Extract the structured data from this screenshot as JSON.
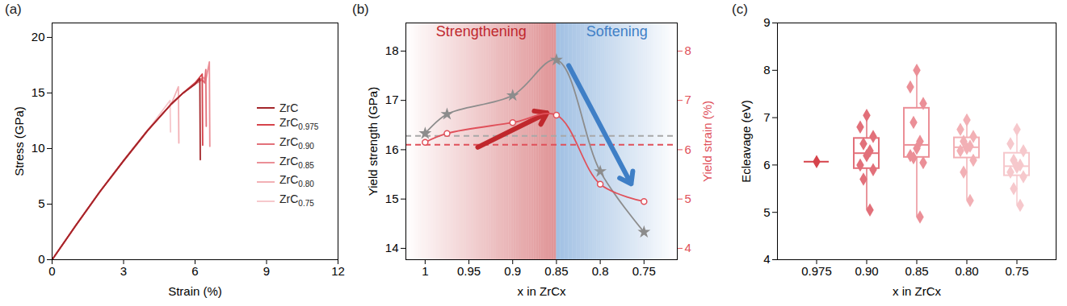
{
  "chart_data": [
    {
      "panel_label": "(a)",
      "type": "line",
      "x_label": "Strain (%)",
      "y_label": "Stress (GPa)",
      "xlim": [
        0,
        12
      ],
      "xticks": [
        0,
        3,
        6,
        9,
        12
      ],
      "ylim": [
        0,
        21.3
      ],
      "yticks": [
        0,
        5,
        10,
        15,
        20
      ],
      "legend": "right",
      "series": [
        {
          "name": "ZrC",
          "color": "#a3262a",
          "x": [
            0,
            1,
            2,
            3,
            4,
            5,
            5.5,
            6.0,
            6.2,
            6.22
          ],
          "values": [
            0,
            3.1,
            6.1,
            8.9,
            11.6,
            14.0,
            15.0,
            15.8,
            16.3,
            9.0
          ]
        },
        {
          "name": "ZrC0.975",
          "color": "#d6434b",
          "x": [
            0,
            1,
            2,
            3,
            4,
            5,
            5.5,
            6.0,
            6.3,
            6.32
          ],
          "values": [
            0,
            3.1,
            6.1,
            8.9,
            11.6,
            14.0,
            15.0,
            15.9,
            16.7,
            10.3
          ]
        },
        {
          "name": "ZrC0.90",
          "color": "#e2707a",
          "x": [
            0,
            1,
            2,
            3,
            4,
            5,
            5.5,
            6.0,
            6.3,
            6.4,
            6.45,
            6.47
          ],
          "values": [
            0,
            3.1,
            6.1,
            8.9,
            11.6,
            14.0,
            15.0,
            15.8,
            16.2,
            15.9,
            17.1,
            12.0
          ]
        },
        {
          "name": "ZrC0.85",
          "color": "#eb8f97",
          "x": [
            0,
            1,
            2,
            3,
            4,
            5,
            5.5,
            6.0,
            6.35,
            6.45,
            6.6,
            6.62
          ],
          "values": [
            0,
            3.1,
            6.1,
            8.9,
            11.6,
            14.0,
            15.0,
            15.9,
            16.4,
            16.1,
            17.8,
            10.2
          ]
        },
        {
          "name": "ZrC0.80",
          "color": "#f2b0b5",
          "x": [
            0,
            1,
            2,
            3,
            4,
            5,
            5.3,
            5.32
          ],
          "values": [
            0,
            3.1,
            6.1,
            8.9,
            11.6,
            14.0,
            15.56,
            10.5
          ]
        },
        {
          "name": "ZrC0.75",
          "color": "#f6c8cc",
          "x": [
            0,
            1,
            2,
            3,
            4,
            4.95,
            4.97
          ],
          "values": [
            0,
            3.1,
            6.1,
            8.9,
            11.6,
            14.33,
            11.5
          ]
        }
      ]
    },
    {
      "panel_label": "(b)",
      "type": "line",
      "x_label": "x in ZrCx",
      "y_label": "Yield strength (GPa)",
      "y2_label": "Yield strain (%)",
      "xlim": [
        1.022,
        0.712
      ],
      "xticks": [
        1,
        0.95,
        0.9,
        0.85,
        0.8,
        0.75
      ],
      "ylim": [
        13.77,
        18.57
      ],
      "yticks": [
        14,
        15,
        16,
        17,
        18
      ],
      "y2lim": [
        3.77,
        8.57
      ],
      "y2ticks": [
        4,
        5,
        6,
        7,
        8
      ],
      "regions": [
        {
          "label": "Strengthening",
          "color": "#c0282d"
        },
        {
          "label": "Softening",
          "color": "#3f7fc6"
        }
      ],
      "series": [
        {
          "color": "#8c8c8c",
          "marker": "star",
          "line_style": "solid",
          "x": [
            1,
            0.975,
            0.9,
            0.85,
            0.8,
            0.75
          ],
          "values": [
            16.33,
            16.72,
            17.1,
            17.82,
            15.56,
            14.33
          ]
        },
        {
          "color": "#e0505a",
          "marker": "circle",
          "line_style": "solid",
          "axis": "y2",
          "x": [
            1,
            0.975,
            0.9,
            0.85,
            0.8,
            0.75
          ],
          "values": [
            6.15,
            6.33,
            6.55,
            6.7,
            5.3,
            4.95
          ]
        }
      ],
      "reference_lines": [
        {
          "value": 16.28,
          "color": "#a8a8a8",
          "line_style": "dashed"
        },
        {
          "value": 6.1,
          "color": "#e0505a",
          "line_style": "dashed",
          "axis": "y2"
        }
      ]
    },
    {
      "panel_label": "(c)",
      "type": "box",
      "x_label": "x in ZrCx",
      "y_label": "Ecleavage (eV)",
      "categories": [
        "0.975",
        "0.90",
        "0.85",
        "0.80",
        "0.75"
      ],
      "colors": [
        "#d6434b",
        "#e2707a",
        "#eb8f97",
        "#f2b0b5",
        "#f6c8cc"
      ],
      "marker": "diamond",
      "values": [
        [
          6.07
        ],
        [
          7.05,
          6.8,
          6.6,
          6.45,
          6.3,
          6.2,
          6.0,
          5.9,
          5.7,
          5.05
        ],
        [
          8.0,
          7.65,
          7.3,
          6.9,
          6.5,
          6.35,
          6.2,
          6.05,
          6.15,
          4.9
        ],
        [
          6.95,
          6.75,
          6.6,
          6.5,
          6.4,
          6.35,
          6.3,
          6.1,
          5.85,
          5.25
        ],
        [
          6.75,
          6.45,
          6.3,
          6.1,
          6.0,
          5.95,
          5.85,
          5.75,
          5.5,
          5.15
        ]
      ],
      "ylim": [
        4,
        9
      ],
      "yticks": [
        4,
        5,
        6,
        7,
        8,
        9
      ]
    }
  ]
}
